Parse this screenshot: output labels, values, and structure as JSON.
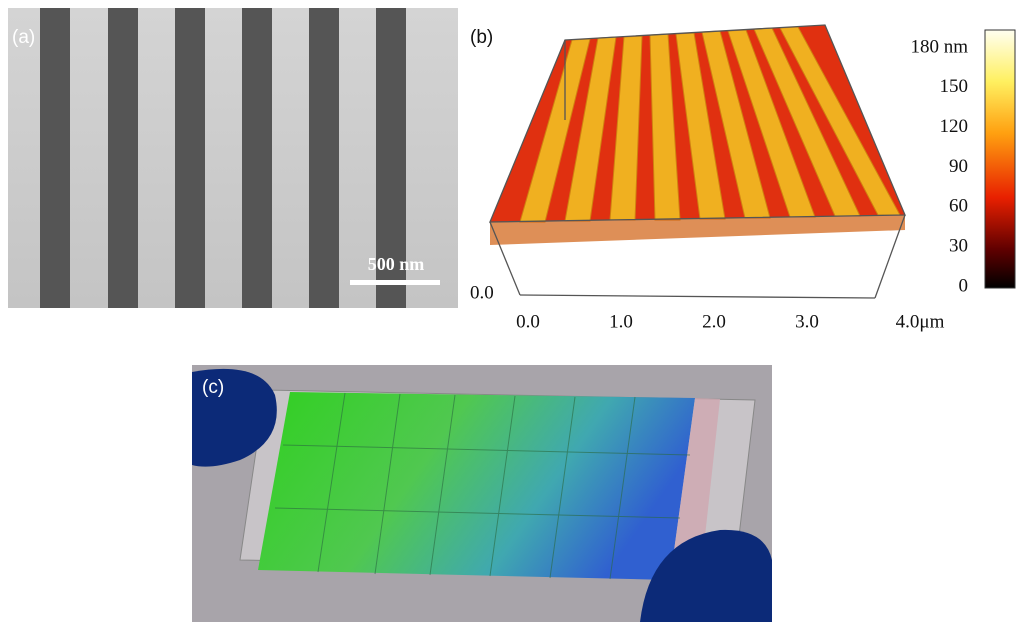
{
  "panels": [
    {
      "label": "(a)",
      "scale_bar": "500 nm"
    },
    {
      "label": "(b)",
      "z_axis_origin": "0.0",
      "x_axis_ticks": [
        "0.0",
        "1.0",
        "2.0",
        "3.0",
        "4.0μm"
      ],
      "colorbar_ticks": [
        "180 nm",
        "150",
        "120",
        "90",
        "60",
        "30",
        "0"
      ]
    },
    {
      "label": "(c)"
    }
  ]
}
